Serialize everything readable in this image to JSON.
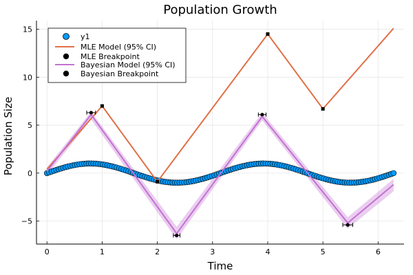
{
  "chart_data": {
    "type": "line",
    "title": "Population Growth",
    "xlabel": "Time",
    "ylabel": "Population Size",
    "xlim": [
      -0.19,
      6.47
    ],
    "ylim": [
      -7.4,
      15.9
    ],
    "xticks": [
      0,
      1,
      2,
      3,
      4,
      5,
      6
    ],
    "yticks": [
      -5,
      0,
      5,
      10,
      15
    ],
    "grid": true,
    "legend_position": "top-left",
    "series": [
      {
        "name": "y1",
        "kind": "scatter",
        "color": "#009af9",
        "function": "sin(2t)",
        "x_start": 0,
        "x_end": 6.28,
        "n_points": 150
      },
      {
        "name": "MLE Model (95% CI)",
        "kind": "line",
        "color": "#e26f46",
        "x": [
          0,
          1,
          2,
          4,
          5,
          6.28
        ],
        "y": [
          0.4,
          7.0,
          -0.9,
          14.5,
          6.7,
          15.1
        ]
      },
      {
        "name": "MLE Breakpoint",
        "kind": "points",
        "color": "#000000",
        "x": [
          1,
          2,
          4,
          5
        ],
        "y": [
          7.0,
          -0.9,
          14.5,
          6.7
        ]
      },
      {
        "name": "Bayesian Model (95% CI)",
        "kind": "line",
        "color": "#c271d2",
        "x": [
          0,
          0.8,
          2.35,
          3.9,
          5.45,
          6.28
        ],
        "y": [
          0.2,
          6.1,
          -6.3,
          5.9,
          -5.2,
          -1.2
        ],
        "ci_upper": [
          0.6,
          6.4,
          -5.6,
          6.3,
          -4.6,
          -0.6
        ],
        "ci_lower": [
          -0.2,
          5.6,
          -6.9,
          5.5,
          -5.8,
          -1.9
        ]
      },
      {
        "name": "Bayesian Breakpoint",
        "kind": "points_with_xerr",
        "color": "#000000",
        "x": [
          0.8,
          2.35,
          3.9,
          5.45
        ],
        "y": [
          6.3,
          -6.5,
          6.1,
          -5.4
        ],
        "xerr": [
          0.08,
          0.06,
          0.07,
          0.09
        ]
      }
    ]
  }
}
